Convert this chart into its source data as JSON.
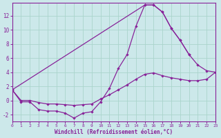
{
  "xlabel": "Windchill (Refroidissement éolien,°C)",
  "background_color": "#cce8ea",
  "grid_color": "#aad4cc",
  "line_color": "#882299",
  "xlim": [
    0,
    23
  ],
  "ylim": [
    -3.0,
    13.8
  ],
  "yticks": [
    -2,
    0,
    2,
    4,
    6,
    8,
    10,
    12
  ],
  "xticks": [
    0,
    1,
    2,
    3,
    4,
    5,
    6,
    7,
    8,
    9,
    10,
    11,
    12,
    13,
    14,
    15,
    16,
    17,
    18,
    19,
    20,
    21,
    22,
    23
  ],
  "s1_x": [
    0,
    1,
    2,
    3,
    4,
    5,
    6,
    7,
    8,
    9,
    10,
    11,
    12,
    13,
    14,
    15,
    16,
    17,
    18,
    19,
    20
  ],
  "s1_y": [
    1.5,
    -0.2,
    -0.2,
    -1.3,
    -1.5,
    -1.5,
    -1.8,
    -2.5,
    -1.8,
    -1.6,
    -0.2,
    1.7,
    4.5,
    6.5,
    10.5,
    13.5,
    13.5,
    12.5,
    10.2,
    8.5,
    6.5
  ],
  "s2_x": [
    0,
    1,
    2,
    3,
    4,
    5,
    6,
    7,
    8,
    9,
    10,
    11,
    12,
    13,
    14,
    15,
    16,
    17,
    18,
    19,
    20,
    21,
    22,
    23
  ],
  "s2_y": [
    1.5,
    0.0,
    0.0,
    -0.3,
    -0.5,
    -0.5,
    -0.6,
    -0.7,
    -0.6,
    -0.5,
    0.2,
    0.8,
    1.5,
    2.2,
    3.0,
    3.7,
    3.9,
    3.5,
    3.2,
    3.0,
    2.8,
    2.8,
    3.0,
    4.0
  ],
  "s3_x": [
    0,
    15,
    16,
    17,
    18,
    19,
    20,
    21,
    22,
    23
  ],
  "s3_y": [
    1.5,
    13.5,
    13.5,
    12.5,
    10.2,
    8.5,
    6.5,
    5.0,
    4.2,
    4.0
  ]
}
